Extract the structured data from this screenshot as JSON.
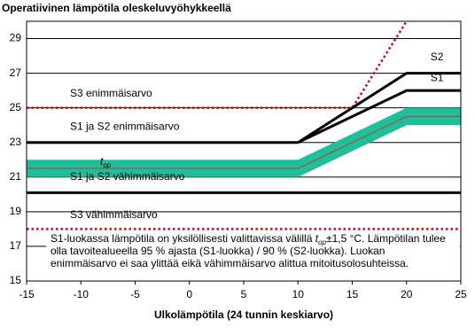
{
  "chart_data": {
    "type": "line",
    "title": "Operatiivinen lämpötila oleskeluvyöhykkeellä",
    "x_label": "Ulkolämpötila (24 tunnin keskiarvo)",
    "xlim": [
      -15,
      25
    ],
    "xticks": [
      -15,
      -10,
      -5,
      0,
      5,
      10,
      15,
      20,
      25
    ],
    "ylim": [
      15,
      30
    ],
    "yticks": [
      15,
      17,
      19,
      21,
      23,
      25,
      27,
      29
    ],
    "grid": true,
    "band": {
      "name": "t",
      "name_sub": "op",
      "color": "#1fbf9c",
      "line_color": "#c0392b",
      "x": [
        -15,
        10,
        20,
        25
      ],
      "lower": [
        21,
        21,
        24,
        24
      ],
      "upper": [
        22,
        22,
        25,
        25
      ],
      "values": [
        21.5,
        21.5,
        24.5,
        24.5
      ]
    },
    "series": [
      {
        "name": "S3 enimmäisarvo",
        "color": "#e00000",
        "dashed": true,
        "x": [
          -15,
          15,
          20
        ],
        "values": [
          25,
          25,
          30
        ]
      },
      {
        "name": "S1 ja S2 enimmäisarvo",
        "color": "#000000",
        "dashed": false,
        "x": [
          -15,
          10
        ],
        "values": [
          23,
          23
        ]
      },
      {
        "name": "S1",
        "color": "#000000",
        "dashed": false,
        "x": [
          10,
          20,
          25
        ],
        "values": [
          23,
          26,
          26
        ]
      },
      {
        "name": "S2",
        "color": "#000000",
        "dashed": false,
        "x": [
          10,
          20,
          25
        ],
        "values": [
          23,
          27,
          27
        ]
      },
      {
        "name": "S1 ja S2 vähimmäisarvo",
        "color": "#000000",
        "dashed": false,
        "x": [
          -15,
          25
        ],
        "values": [
          20.1,
          20.1
        ]
      },
      {
        "name": "S3 vähimmäisarvo",
        "color": "#e00000",
        "dashed": true,
        "x": [
          -15,
          25
        ],
        "values": [
          18,
          18
        ]
      }
    ],
    "note": {
      "lines": [
        [
          "S1-luokassa lämpötila on yksilöllisesti valittavissa välillä ",
          "t",
          "op",
          "±1,5 °C. Lämpötilan tulee"
        ],
        [
          "olla tavoitealueella 95 % ajasta (S1-luokka) / 90 % (S2-luokka). Luokan"
        ],
        [
          "enimmäisarvo ei saa ylittää eikä vähimmäisarvo alittua mitoitusolosuhteissa."
        ]
      ]
    }
  }
}
